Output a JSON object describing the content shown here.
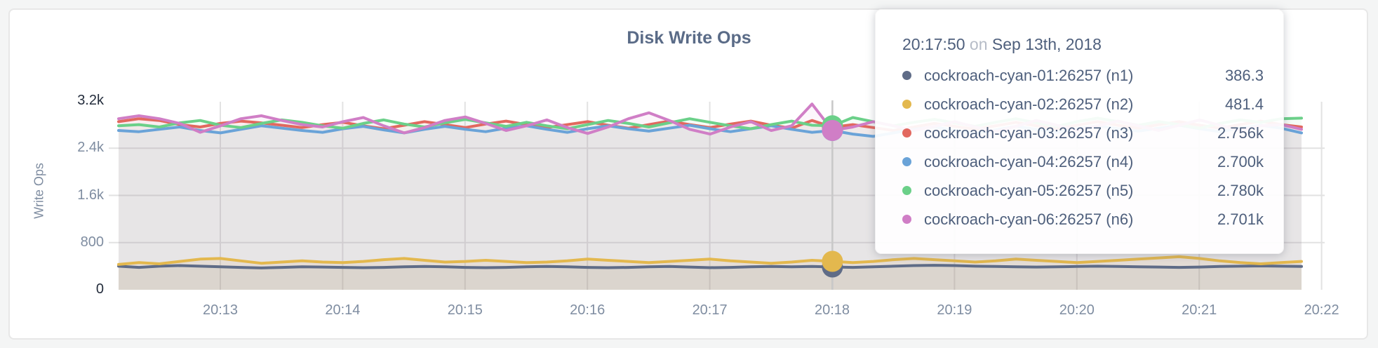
{
  "page": {
    "background": "#f4f5f5"
  },
  "card": {
    "background": "#ffffff",
    "border_color": "#e7e7e7"
  },
  "chart_data": {
    "type": "line",
    "title": "Disk Write Ops",
    "ylabel": "Write Ops",
    "ylim": [
      0,
      3200
    ],
    "grid": true,
    "legend_position": "tooltip",
    "yticks": [
      {
        "label": "0",
        "value": 0,
        "dark": true
      },
      {
        "label": "800",
        "value": 800,
        "dark": false
      },
      {
        "label": "1.6k",
        "value": 1600,
        "dark": false
      },
      {
        "label": "2.4k",
        "value": 2400,
        "dark": false
      },
      {
        "label": "3.2k",
        "value": 3200,
        "dark": true
      }
    ],
    "xticks": [
      "20:13",
      "20:14",
      "20:15",
      "20:16",
      "20:17",
      "20:18",
      "20:19",
      "20:20",
      "20:21",
      "20:22"
    ],
    "x_start_time": "20:12:00",
    "x_step_seconds": 10,
    "hover": {
      "index": 35,
      "time": "20:17:50"
    },
    "series": [
      {
        "name": "cockroach-cyan-01:26257 (n1)",
        "node": "n1",
        "color": "#5f6c87",
        "fill_opacity": 0.09,
        "values": [
          400,
          380,
          400,
          410,
          400,
          390,
          380,
          370,
          380,
          390,
          385,
          380,
          375,
          380,
          390,
          395,
          390,
          380,
          375,
          380,
          390,
          395,
          390,
          380,
          375,
          380,
          390,
          395,
          385,
          375,
          380,
          390,
          395,
          390,
          395,
          386.3,
          380,
          390,
          400,
          410,
          415,
          410,
          400,
          395,
          390,
          385,
          390,
          395,
          400,
          395,
          390,
          385,
          380,
          385,
          395,
          400,
          405,
          400,
          395
        ]
      },
      {
        "name": "cockroach-cyan-02:26257 (n2)",
        "node": "n2",
        "color": "#e3b84e",
        "fill_opacity": 0.12,
        "values": [
          430,
          460,
          440,
          480,
          520,
          530,
          490,
          450,
          470,
          490,
          470,
          460,
          480,
          510,
          530,
          500,
          470,
          480,
          500,
          480,
          460,
          470,
          490,
          520,
          500,
          480,
          460,
          480,
          500,
          520,
          490,
          470,
          450,
          470,
          500,
          481.4,
          460,
          480,
          510,
          530,
          510,
          490,
          470,
          490,
          520,
          500,
          480,
          460,
          480,
          500,
          520,
          540,
          560,
          530,
          490,
          460,
          440,
          460,
          480
        ]
      },
      {
        "name": "cockroach-cyan-03:26257 (n3)",
        "node": "n3",
        "color": "#e2685f",
        "fill_opacity": 0.065,
        "values": [
          2850,
          2900,
          2870,
          2800,
          2760,
          2820,
          2860,
          2830,
          2790,
          2750,
          2800,
          2840,
          2780,
          2730,
          2790,
          2850,
          2800,
          2750,
          2810,
          2860,
          2800,
          2750,
          2800,
          2850,
          2790,
          2740,
          2800,
          2860,
          2800,
          2750,
          2810,
          2860,
          2790,
          2740,
          2870,
          2756,
          2800,
          2750,
          2700,
          2760,
          2820,
          2770,
          2720,
          2780,
          2840,
          2780,
          2730,
          2790,
          2850,
          2790,
          2740,
          2800,
          2850,
          2790,
          2740,
          2800,
          2860,
          2800,
          2760
        ]
      },
      {
        "name": "cockroach-cyan-04:26257 (n4)",
        "node": "n4",
        "color": "#6aa3d8",
        "fill_opacity": 0.065,
        "values": [
          2700,
          2680,
          2720,
          2760,
          2700,
          2660,
          2720,
          2780,
          2740,
          2700,
          2670,
          2730,
          2770,
          2710,
          2660,
          2720,
          2770,
          2720,
          2680,
          2740,
          2780,
          2720,
          2670,
          2730,
          2780,
          2730,
          2690,
          2740,
          2790,
          2730,
          2680,
          2730,
          2780,
          2720,
          2670,
          2700,
          2640,
          2600,
          2660,
          2720,
          2760,
          2700,
          2650,
          2710,
          2770,
          2720,
          2670,
          2730,
          2780,
          2730,
          2690,
          2740,
          2790,
          2730,
          2680,
          2740,
          2790,
          2740,
          2660
        ]
      },
      {
        "name": "cockroach-cyan-05:26257 (n5)",
        "node": "n5",
        "color": "#6bd089",
        "fill_opacity": 0.065,
        "values": [
          2780,
          2800,
          2760,
          2830,
          2870,
          2790,
          2750,
          2820,
          2880,
          2840,
          2780,
          2740,
          2820,
          2880,
          2810,
          2760,
          2830,
          2890,
          2830,
          2770,
          2840,
          2780,
          2730,
          2800,
          2870,
          2820,
          2760,
          2830,
          2900,
          2840,
          2780,
          2730,
          2800,
          2860,
          2790,
          2780,
          2920,
          2850,
          2780,
          2840,
          2890,
          2830,
          2770,
          2840,
          2900,
          2830,
          2770,
          2850,
          2910,
          2850,
          2790,
          2850,
          2800,
          2740,
          2820,
          2880,
          2840,
          2900,
          2910
        ]
      },
      {
        "name": "cockroach-cyan-06:26257 (n6)",
        "node": "n6",
        "color": "#d07ec6",
        "fill_opacity": 0.065,
        "values": [
          2900,
          2950,
          2900,
          2820,
          2670,
          2780,
          2900,
          2950,
          2870,
          2800,
          2760,
          2850,
          2920,
          2780,
          2660,
          2750,
          2870,
          2930,
          2820,
          2700,
          2780,
          2880,
          2750,
          2650,
          2760,
          2900,
          3000,
          2870,
          2720,
          2640,
          2760,
          2850,
          2700,
          2780,
          3150,
          2701,
          2760,
          2850,
          2780,
          2700,
          2770,
          2850,
          2760,
          2680,
          2770,
          2870,
          2790,
          2700,
          2780,
          2860,
          2780,
          2700,
          2790,
          2880,
          2790,
          2700,
          2780,
          2800,
          2720
        ]
      }
    ]
  },
  "tooltip": {
    "time": "20:17:50",
    "conjunction": "on",
    "date": "Sep 13th, 2018",
    "rows": [
      {
        "label": "cockroach-cyan-01:26257 (n1)",
        "value": "386.3",
        "color": "#5f6c87"
      },
      {
        "label": "cockroach-cyan-02:26257 (n2)",
        "value": "481.4",
        "color": "#e3b84e"
      },
      {
        "label": "cockroach-cyan-03:26257 (n3)",
        "value": "2.756k",
        "color": "#e2685f"
      },
      {
        "label": "cockroach-cyan-04:26257 (n4)",
        "value": "2.700k",
        "color": "#6aa3d8"
      },
      {
        "label": "cockroach-cyan-05:26257 (n5)",
        "value": "2.780k",
        "color": "#6bd089"
      },
      {
        "label": "cockroach-cyan-06:26257 (n6)",
        "value": "2.701k",
        "color": "#d07ec6"
      }
    ]
  }
}
